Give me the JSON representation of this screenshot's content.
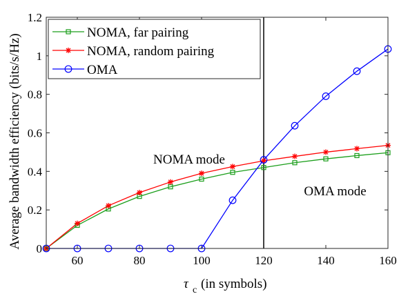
{
  "chart_data": {
    "type": "line",
    "xlabel": "τ_c (in symbols)",
    "xlabel_main": "τ",
    "xlabel_sub": "c",
    "xlabel_rest": "(in symbols)",
    "ylabel": "Average bandwidth efficiency (bits/s/Hz)",
    "xlim": [
      50,
      160
    ],
    "ylim": [
      0,
      1.2
    ],
    "xticks": [
      60,
      80,
      100,
      120,
      140,
      160
    ],
    "yticks": [
      0,
      0.2,
      0.4,
      0.6,
      0.8,
      1,
      1.2
    ],
    "ytick_labels": [
      "0",
      "0.2",
      "0.4",
      "0.6",
      "0.8",
      "1",
      "1.2"
    ],
    "grid": false,
    "legend_position": "top-left",
    "x": [
      50,
      60,
      70,
      80,
      90,
      100,
      110,
      120,
      130,
      140,
      150,
      160
    ],
    "series": [
      {
        "name": "NOMA, far pairing",
        "color": "#1a9e1a",
        "marker": "square",
        "values": [
          0.0,
          0.12,
          0.205,
          0.27,
          0.32,
          0.36,
          0.395,
          0.42,
          0.445,
          0.465,
          0.482,
          0.497
        ]
      },
      {
        "name": "NOMA, random pairing",
        "color": "#ff0000",
        "marker": "star",
        "values": [
          0.0,
          0.13,
          0.222,
          0.29,
          0.345,
          0.39,
          0.425,
          0.455,
          0.478,
          0.5,
          0.518,
          0.535
        ]
      },
      {
        "name": "OMA",
        "color": "#0000ff",
        "marker": "circle",
        "values": [
          0.0,
          0.0,
          0.0,
          0.0,
          0.0,
          0.0,
          0.25,
          0.46,
          0.637,
          0.79,
          0.92,
          1.035
        ]
      }
    ],
    "vertical_line_x": 120,
    "annotations": [
      {
        "text": "NOMA mode",
        "x": 96,
        "y": 0.44
      },
      {
        "text": "OMA mode",
        "x": 143,
        "y": 0.275
      }
    ]
  }
}
